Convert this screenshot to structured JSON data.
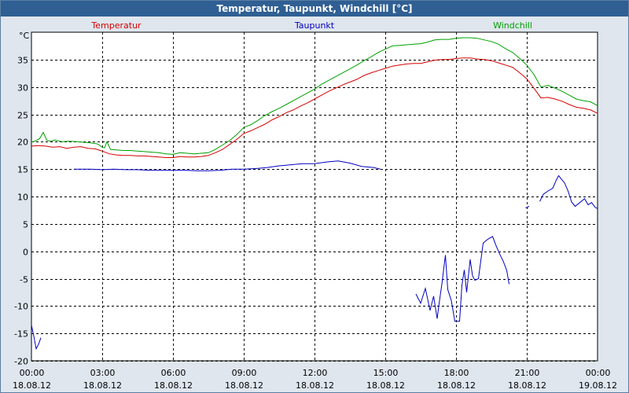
{
  "window": {
    "title": "Temperatur, Taupunkt, Windchill [°C]"
  },
  "chart_data": {
    "type": "line",
    "ylabel": "°C",
    "ylim": [
      -20,
      40
    ],
    "yticks": [
      35,
      30,
      25,
      20,
      15,
      10,
      5,
      0,
      -5,
      -10,
      -15,
      -20
    ],
    "xlim": [
      0,
      24
    ],
    "xticks": [
      {
        "h": 0,
        "time": "00:00",
        "date": "18.08.12"
      },
      {
        "h": 3,
        "time": "03:00",
        "date": "18.08.12"
      },
      {
        "h": 6,
        "time": "06:00",
        "date": "18.08.12"
      },
      {
        "h": 9,
        "time": "09:00",
        "date": "18.08.12"
      },
      {
        "h": 12,
        "time": "12:00",
        "date": "18.08.12"
      },
      {
        "h": 15,
        "time": "15:00",
        "date": "18.08.12"
      },
      {
        "h": 18,
        "time": "18:00",
        "date": "18.08.12"
      },
      {
        "h": 21,
        "time": "21:00",
        "date": "18.08.12"
      },
      {
        "h": 24,
        "time": "00:00",
        "date": "19.08.12"
      }
    ],
    "grid": true,
    "series": [
      {
        "name": "Temperatur",
        "color": "#d40000",
        "legend_pos": "left",
        "segments": [
          [
            [
              0,
              19.2
            ],
            [
              0.3,
              19.3
            ],
            [
              0.6,
              19.2
            ],
            [
              0.9,
              19.0
            ],
            [
              1.2,
              19.1
            ],
            [
              1.5,
              18.8
            ],
            [
              1.8,
              19.0
            ],
            [
              2.1,
              19.1
            ],
            [
              2.4,
              18.8
            ],
            [
              2.7,
              18.7
            ],
            [
              3.0,
              18.3
            ],
            [
              3.3,
              17.8
            ],
            [
              3.6,
              17.6
            ],
            [
              3.9,
              17.5
            ],
            [
              4.2,
              17.5
            ],
            [
              4.5,
              17.4
            ],
            [
              4.8,
              17.4
            ],
            [
              5.1,
              17.3
            ],
            [
              5.4,
              17.2
            ],
            [
              5.7,
              17.1
            ],
            [
              6.0,
              17.1
            ],
            [
              6.3,
              17.3
            ],
            [
              6.6,
              17.2
            ],
            [
              6.9,
              17.2
            ],
            [
              7.2,
              17.3
            ],
            [
              7.5,
              17.5
            ],
            [
              7.8,
              18.0
            ],
            [
              8.1,
              18.6
            ],
            [
              8.4,
              19.5
            ],
            [
              8.7,
              20.4
            ],
            [
              9.0,
              21.5
            ],
            [
              9.3,
              22.0
            ],
            [
              9.6,
              22.6
            ],
            [
              9.9,
              23.2
            ],
            [
              10.2,
              24.0
            ],
            [
              10.5,
              24.6
            ],
            [
              10.8,
              25.3
            ],
            [
              11.1,
              25.8
            ],
            [
              11.4,
              26.5
            ],
            [
              11.7,
              27.1
            ],
            [
              12.0,
              27.8
            ],
            [
              12.3,
              28.5
            ],
            [
              12.6,
              29.2
            ],
            [
              12.9,
              29.8
            ],
            [
              13.2,
              30.4
            ],
            [
              13.5,
              30.9
            ],
            [
              13.8,
              31.4
            ],
            [
              14.1,
              32.1
            ],
            [
              14.4,
              32.6
            ],
            [
              14.7,
              33.0
            ],
            [
              15.0,
              33.4
            ],
            [
              15.3,
              33.8
            ],
            [
              15.6,
              34.0
            ],
            [
              15.9,
              34.2
            ],
            [
              16.2,
              34.3
            ],
            [
              16.5,
              34.3
            ],
            [
              16.8,
              34.6
            ],
            [
              17.1,
              34.9
            ],
            [
              17.4,
              35.0
            ],
            [
              17.7,
              35.0
            ],
            [
              18.0,
              35.2
            ],
            [
              18.3,
              35.3
            ],
            [
              18.6,
              35.3
            ],
            [
              18.9,
              35.1
            ],
            [
              19.2,
              35.0
            ],
            [
              19.5,
              34.8
            ],
            [
              19.8,
              34.4
            ],
            [
              20.1,
              34.0
            ],
            [
              20.4,
              33.6
            ],
            [
              20.7,
              32.6
            ],
            [
              21.0,
              31.5
            ],
            [
              21.3,
              29.8
            ],
            [
              21.6,
              28.0
            ],
            [
              21.9,
              28.1
            ],
            [
              22.2,
              27.8
            ],
            [
              22.5,
              27.4
            ],
            [
              22.8,
              26.8
            ],
            [
              23.1,
              26.3
            ],
            [
              23.4,
              26.1
            ],
            [
              23.7,
              25.8
            ],
            [
              24.0,
              25.2
            ]
          ]
        ]
      },
      {
        "name": "Taupunkt",
        "color": "#0000c0",
        "legend_pos": "center",
        "segments": [
          [
            [
              0,
              -13.5
            ],
            [
              0.1,
              -15.5
            ],
            [
              0.2,
              -17.8
            ],
            [
              0.3,
              -17.0
            ],
            [
              0.4,
              -15.8
            ]
          ],
          [
            [
              1.8,
              15.0
            ],
            [
              2.2,
              15.0
            ],
            [
              2.5,
              15.0
            ],
            [
              3.0,
              14.9
            ],
            [
              3.5,
              15.0
            ],
            [
              4.0,
              14.9
            ],
            [
              4.5,
              14.9
            ],
            [
              5.0,
              14.8
            ],
            [
              5.5,
              14.8
            ],
            [
              6.0,
              14.8
            ],
            [
              6.5,
              14.8
            ],
            [
              7.0,
              14.7
            ],
            [
              7.5,
              14.7
            ],
            [
              8.0,
              14.8
            ],
            [
              8.5,
              15.0
            ],
            [
              9.0,
              15.0
            ],
            [
              9.5,
              15.1
            ],
            [
              10.0,
              15.3
            ],
            [
              10.5,
              15.6
            ],
            [
              11.0,
              15.8
            ],
            [
              11.5,
              16.0
            ],
            [
              12.0,
              16.0
            ],
            [
              12.5,
              16.3
            ],
            [
              13.0,
              16.5
            ],
            [
              13.5,
              16.1
            ],
            [
              14.0,
              15.5
            ],
            [
              14.5,
              15.3
            ],
            [
              14.8,
              15.0
            ]
          ],
          [
            [
              16.3,
              -7.8
            ],
            [
              16.5,
              -9.5
            ],
            [
              16.7,
              -6.8
            ],
            [
              16.9,
              -10.8
            ],
            [
              17.05,
              -8.2
            ],
            [
              17.2,
              -12.3
            ],
            [
              17.3,
              -9.0
            ],
            [
              17.4,
              -6.0
            ],
            [
              17.55,
              -0.7
            ],
            [
              17.65,
              -7.0
            ],
            [
              17.8,
              -9.0
            ],
            [
              17.95,
              -12.8
            ],
            [
              18.15,
              -12.8
            ],
            [
              18.25,
              -6.2
            ],
            [
              18.35,
              -3.4
            ],
            [
              18.45,
              -7.5
            ],
            [
              18.6,
              -1.5
            ],
            [
              18.7,
              -4.5
            ],
            [
              18.8,
              -5.3
            ],
            [
              18.95,
              -5.0
            ],
            [
              19.15,
              1.5
            ],
            [
              19.35,
              2.2
            ],
            [
              19.55,
              2.7
            ],
            [
              19.7,
              1.0
            ],
            [
              19.85,
              -0.5
            ],
            [
              20.0,
              -1.8
            ],
            [
              20.15,
              -3.5
            ],
            [
              20.25,
              -6.0
            ]
          ],
          [
            [
              20.95,
              7.9
            ],
            [
              21.1,
              8.2
            ]
          ],
          [
            [
              21.55,
              9.1
            ],
            [
              21.7,
              10.4
            ],
            [
              21.9,
              11.0
            ],
            [
              22.1,
              11.5
            ],
            [
              22.25,
              13.0
            ],
            [
              22.35,
              13.8
            ],
            [
              22.5,
              13.0
            ],
            [
              22.6,
              12.5
            ],
            [
              22.75,
              11.0
            ],
            [
              22.9,
              9.0
            ],
            [
              23.05,
              8.2
            ],
            [
              23.25,
              8.9
            ],
            [
              23.45,
              9.6
            ],
            [
              23.6,
              8.5
            ],
            [
              23.75,
              8.9
            ],
            [
              23.9,
              8.0
            ],
            [
              24.0,
              7.8
            ]
          ]
        ]
      },
      {
        "name": "Windchill",
        "color": "#00a000",
        "legend_pos": "right",
        "segments": [
          [
            [
              0,
              19.9
            ],
            [
              0.2,
              20.2
            ],
            [
              0.35,
              20.6
            ],
            [
              0.5,
              21.7
            ],
            [
              0.65,
              20.3
            ],
            [
              0.8,
              20.1
            ],
            [
              1.0,
              20.3
            ],
            [
              1.3,
              20.0
            ],
            [
              1.6,
              20.1
            ],
            [
              1.9,
              20.0
            ],
            [
              2.2,
              19.9
            ],
            [
              2.5,
              19.8
            ],
            [
              2.8,
              19.6
            ],
            [
              3.0,
              19.0
            ],
            [
              3.1,
              18.9
            ],
            [
              3.2,
              20.0
            ],
            [
              3.35,
              18.6
            ],
            [
              3.6,
              18.5
            ],
            [
              3.9,
              18.4
            ],
            [
              4.2,
              18.4
            ],
            [
              4.5,
              18.3
            ],
            [
              4.8,
              18.2
            ],
            [
              5.1,
              18.1
            ],
            [
              5.4,
              18.0
            ],
            [
              5.7,
              17.8
            ],
            [
              6.0,
              17.7
            ],
            [
              6.3,
              18.0
            ],
            [
              6.6,
              17.9
            ],
            [
              6.9,
              17.8
            ],
            [
              7.2,
              17.9
            ],
            [
              7.5,
              18.0
            ],
            [
              7.8,
              18.6
            ],
            [
              8.1,
              19.4
            ],
            [
              8.4,
              20.2
            ],
            [
              8.7,
              21.3
            ],
            [
              9.0,
              22.6
            ],
            [
              9.3,
              23.1
            ],
            [
              9.6,
              23.9
            ],
            [
              9.9,
              24.8
            ],
            [
              10.2,
              25.5
            ],
            [
              10.5,
              26.1
            ],
            [
              10.8,
              26.8
            ],
            [
              11.1,
              27.5
            ],
            [
              11.4,
              28.2
            ],
            [
              11.7,
              28.9
            ],
            [
              12.0,
              29.6
            ],
            [
              12.3,
              30.5
            ],
            [
              12.6,
              31.2
            ],
            [
              12.9,
              31.9
            ],
            [
              13.2,
              32.6
            ],
            [
              13.5,
              33.3
            ],
            [
              13.8,
              34.0
            ],
            [
              14.1,
              34.8
            ],
            [
              14.4,
              35.5
            ],
            [
              14.7,
              36.3
            ],
            [
              15.0,
              36.9
            ],
            [
              15.3,
              37.5
            ],
            [
              15.6,
              37.6
            ],
            [
              15.9,
              37.7
            ],
            [
              16.2,
              37.8
            ],
            [
              16.5,
              37.9
            ],
            [
              16.8,
              38.2
            ],
            [
              17.1,
              38.6
            ],
            [
              17.4,
              38.7
            ],
            [
              17.7,
              38.7
            ],
            [
              18.0,
              38.9
            ],
            [
              18.3,
              39.0
            ],
            [
              18.6,
              39.0
            ],
            [
              18.9,
              38.9
            ],
            [
              19.2,
              38.6
            ],
            [
              19.5,
              38.3
            ],
            [
              19.8,
              37.8
            ],
            [
              20.1,
              37.0
            ],
            [
              20.4,
              36.3
            ],
            [
              20.7,
              35.2
            ],
            [
              21.0,
              34.0
            ],
            [
              21.3,
              32.3
            ],
            [
              21.6,
              30.0
            ],
            [
              21.9,
              30.3
            ],
            [
              22.2,
              29.8
            ],
            [
              22.5,
              29.2
            ],
            [
              22.8,
              28.5
            ],
            [
              23.1,
              27.8
            ],
            [
              23.4,
              27.5
            ],
            [
              23.7,
              27.3
            ],
            [
              24.0,
              26.6
            ]
          ]
        ]
      }
    ]
  }
}
